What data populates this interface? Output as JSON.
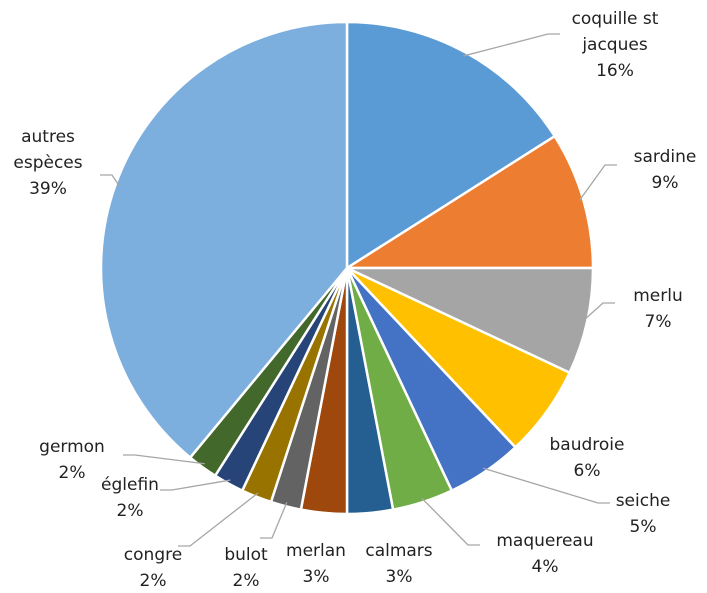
{
  "chart_data": {
    "type": "pie",
    "categories": [
      "coquille st jacques",
      "sardine",
      "merlu",
      "baudroie",
      "seiche",
      "maquereau",
      "calmars",
      "merlan",
      "bulot",
      "congre",
      "églefin",
      "germon",
      "autres espèces"
    ],
    "values": [
      16,
      9,
      7,
      6,
      5,
      4,
      3,
      3,
      2,
      2,
      2,
      2,
      39
    ],
    "value_labels": [
      "16%",
      "9%",
      "7%",
      "6%",
      "5%",
      "4%",
      "3%",
      "3%",
      "2%",
      "2%",
      "2%",
      "2%",
      "39%"
    ],
    "colors": [
      "#5b9bd5",
      "#ed7d31",
      "#a5a5a5",
      "#ffc000",
      "#4472c4",
      "#70ad47",
      "#255e91",
      "#9e480e",
      "#636363",
      "#997300",
      "#264478",
      "#43682b",
      "#7cafdd"
    ]
  }
}
